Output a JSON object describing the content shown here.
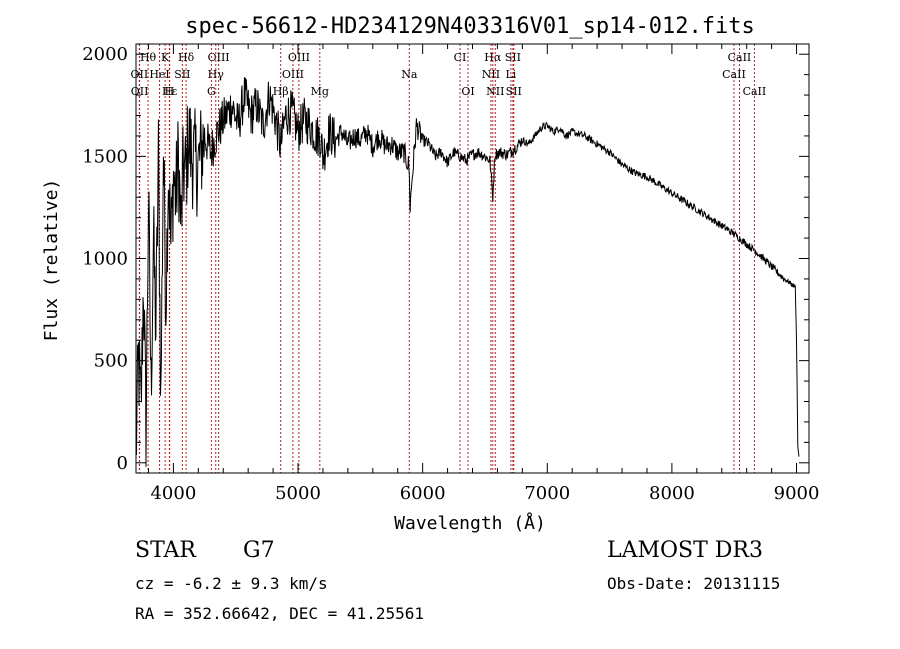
{
  "chart_data": {
    "type": "line",
    "title": "spec-56612-HD234129N403316V01_sp14-012.fits",
    "xlabel": "Wavelength (Å)",
    "ylabel": "Flux (relative)",
    "xlim": [
      3700,
      9100
    ],
    "ylim": [
      -50,
      2050
    ],
    "xticks": [
      4000,
      5000,
      6000,
      7000,
      8000,
      9000
    ],
    "xtick_labels": [
      "4000",
      "5000",
      "6000",
      "7000",
      "8000",
      "9000"
    ],
    "yticks": [
      0,
      500,
      1000,
      1500,
      2000
    ],
    "ytick_labels": [
      "0",
      "500",
      "1000",
      "1500",
      "2000"
    ],
    "grid": false,
    "series": [
      {
        "name": "flux",
        "x": [
          3700,
          3720,
          3740,
          3760,
          3780,
          3800,
          3820,
          3840,
          3860,
          3880,
          3900,
          3920,
          3940,
          3960,
          3980,
          4000,
          4020,
          4040,
          4060,
          4080,
          4100,
          4120,
          4150,
          4200,
          4250,
          4300,
          4340,
          4380,
          4420,
          4470,
          4520,
          4570,
          4620,
          4670,
          4720,
          4770,
          4820,
          4860,
          4900,
          4950,
          5000,
          5050,
          5100,
          5150,
          5180,
          5200,
          5250,
          5300,
          5350,
          5400,
          5450,
          5500,
          5550,
          5600,
          5650,
          5700,
          5750,
          5800,
          5850,
          5890,
          5900,
          5910,
          5950,
          6000,
          6050,
          6100,
          6150,
          6200,
          6250,
          6300,
          6350,
          6400,
          6450,
          6500,
          6540,
          6563,
          6580,
          6620,
          6680,
          6740,
          6800,
          6850,
          6900,
          6950,
          7000,
          7050,
          7100,
          7150,
          7200,
          7300,
          7400,
          7500,
          7600,
          7700,
          7800,
          7900,
          8000,
          8100,
          8200,
          8300,
          8400,
          8500,
          8540,
          8600,
          8662,
          8700,
          8750,
          8800,
          8850,
          8900,
          8950,
          8990,
          9000,
          9010,
          9020
        ],
        "values": [
          50,
          500,
          250,
          900,
          150,
          1300,
          350,
          1100,
          650,
          1500,
          300,
          1550,
          800,
          1450,
          1050,
          1400,
          1300,
          1500,
          1150,
          1450,
          1400,
          1600,
          1500,
          1450,
          1600,
          1520,
          1600,
          1650,
          1700,
          1750,
          1650,
          1800,
          1700,
          1750,
          1650,
          1800,
          1680,
          1550,
          1700,
          1720,
          1620,
          1680,
          1650,
          1600,
          1600,
          1500,
          1620,
          1580,
          1620,
          1560,
          1600,
          1580,
          1620,
          1550,
          1600,
          1550,
          1560,
          1520,
          1520,
          1450,
          1250,
          1350,
          1650,
          1580,
          1560,
          1500,
          1520,
          1470,
          1520,
          1500,
          1480,
          1510,
          1520,
          1500,
          1480,
          1300,
          1510,
          1520,
          1510,
          1540,
          1580,
          1560,
          1600,
          1640,
          1650,
          1620,
          1640,
          1600,
          1620,
          1600,
          1560,
          1520,
          1460,
          1420,
          1400,
          1360,
          1320,
          1280,
          1240,
          1200,
          1160,
          1120,
          1100,
          1070,
          1040,
          1020,
          990,
          960,
          930,
          900,
          880,
          860,
          600,
          80,
          30
        ]
      }
    ],
    "line_markers": [
      {
        "label": "Hθ",
        "wavelength": 3797,
        "row": 1
      },
      {
        "label": "K",
        "wavelength": 3934,
        "row": 1
      },
      {
        "label": "Hδ",
        "wavelength": 4102,
        "row": 1
      },
      {
        "label": "OIII",
        "wavelength": 4363,
        "row": 1
      },
      {
        "label": "OIII",
        "wavelength": 5007,
        "row": 1
      },
      {
        "label": "CI",
        "wavelength": 6300,
        "row": 1
      },
      {
        "label": "Hα",
        "wavelength": 6563,
        "row": 1
      },
      {
        "label": "SII",
        "wavelength": 6724,
        "row": 1
      },
      {
        "label": "CaII",
        "wavelength": 8542,
        "row": 1
      },
      {
        "label": "OII",
        "wavelength": 3727,
        "row": 2
      },
      {
        "label": "HeI",
        "wavelength": 3889,
        "row": 2
      },
      {
        "label": "SII",
        "wavelength": 4072,
        "row": 2
      },
      {
        "label": "Hγ",
        "wavelength": 4340,
        "row": 2
      },
      {
        "label": "OIII",
        "wavelength": 4959,
        "row": 2
      },
      {
        "label": "Na",
        "wavelength": 5893,
        "row": 2
      },
      {
        "label": "NII",
        "wavelength": 6548,
        "row": 2
      },
      {
        "label": "Li",
        "wavelength": 6708,
        "row": 2
      },
      {
        "label": "CaII",
        "wavelength": 8498,
        "row": 2
      },
      {
        "label": "OII",
        "wavelength": 3729,
        "row": 3
      },
      {
        "label": "Hε",
        "wavelength": 3970,
        "row": 3
      },
      {
        "label": "H",
        "wavelength": 3968,
        "row": 3
      },
      {
        "label": "G",
        "wavelength": 4305,
        "row": 3
      },
      {
        "label": "Hβ",
        "wavelength": 4861,
        "row": 3
      },
      {
        "label": "Mg",
        "wavelength": 5175,
        "row": 3
      },
      {
        "label": "OI",
        "wavelength": 6364,
        "row": 3
      },
      {
        "label": "NII",
        "wavelength": 6583,
        "row": 3
      },
      {
        "label": "SII",
        "wavelength": 6731,
        "row": 3
      },
      {
        "label": "CaII",
        "wavelength": 8662,
        "row": 3
      }
    ]
  },
  "info": {
    "object_class": "STAR",
    "subclass": "G7",
    "survey": "LAMOST DR3",
    "redshift": "cz = -6.2 ± 9.3 km/s",
    "obs_date": "Obs-Date: 20131115",
    "coords": "RA = 352.66642, DEC =  41.25561"
  }
}
